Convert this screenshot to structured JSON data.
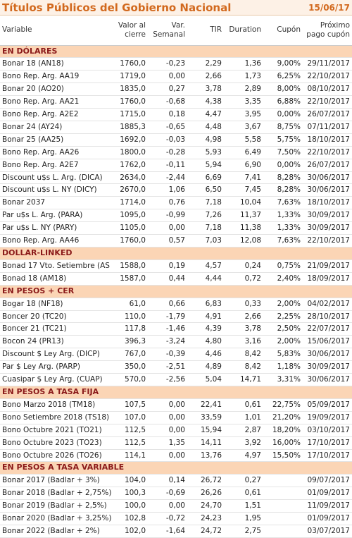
{
  "header": {
    "title": "Títulos Públicos del Gobierno Nacional",
    "date": "15/06/17"
  },
  "columns": [
    [
      "Variable"
    ],
    [
      "Valor al",
      "cierre"
    ],
    [
      "Var.",
      "Semanal"
    ],
    [
      "TIR"
    ],
    [
      "Duration"
    ],
    [
      "Cupón"
    ],
    [
      "Próximo",
      "pago cupón"
    ]
  ],
  "sections": [
    {
      "title": "EN DÓLARES",
      "rows": [
        [
          "Bonar 18 (AN18)",
          "1760,0",
          "-0,23",
          "2,29",
          "1,36",
          "9,00%",
          "29/11/2017"
        ],
        [
          "Bono Rep. Arg. AA19",
          "1719,0",
          "0,00",
          "2,66",
          "1,73",
          "6,25%",
          "22/10/2017"
        ],
        [
          "Bonar 20 (AO20)",
          "1835,0",
          "0,27",
          "3,78",
          "2,89",
          "8,00%",
          "08/10/2017"
        ],
        [
          "Bono Rep. Arg. AA21",
          "1760,0",
          "-0,68",
          "4,38",
          "3,35",
          "6,88%",
          "22/10/2017"
        ],
        [
          "Bono Rep. Arg. A2E2",
          "1715,0",
          "0,18",
          "4,47",
          "3,95",
          "0,00%",
          "26/07/2017"
        ],
        [
          "Bonar 24 (AY24)",
          "1885,3",
          "-0,65",
          "4,48",
          "3,67",
          "8,75%",
          "07/11/2017"
        ],
        [
          "Bonar 25 (AA25)",
          "1692,0",
          "-0,03",
          "4,98",
          "5,58",
          "5,75%",
          "18/10/2017"
        ],
        [
          "Bono Rep. Arg. AA26",
          "1800,0",
          "-0,28",
          "5,93",
          "6,49",
          "7,50%",
          "22/10/2017"
        ],
        [
          "Bono Rep. Arg. A2E7",
          "1762,0",
          "-0,11",
          "5,94",
          "6,90",
          "0,00%",
          "26/07/2017"
        ],
        [
          "Discount u$s L. Arg. (DICA)",
          "2634,0",
          "-2,44",
          "6,69",
          "7,41",
          "8,28%",
          "30/06/2017"
        ],
        [
          "Discount u$s L. NY (DICY)",
          "2670,0",
          "1,06",
          "6,50",
          "7,45",
          "8,28%",
          "30/06/2017"
        ],
        [
          "Bonar 2037",
          "1714,0",
          "0,76",
          "7,18",
          "10,04",
          "7,63%",
          "18/10/2017"
        ],
        [
          "Par u$s L. Arg. (PARA)",
          "1095,0",
          "-0,99",
          "7,26",
          "11,37",
          "1,33%",
          "30/09/2017"
        ],
        [
          "Par u$s L. NY (PARY)",
          "1105,0",
          "0,00",
          "7,18",
          "11,38",
          "1,33%",
          "30/09/2017"
        ],
        [
          "Bono Rep. Arg. AA46",
          "1760,0",
          "0,57",
          "7,03",
          "12,08",
          "7,63%",
          "22/10/2017"
        ]
      ]
    },
    {
      "title": "DOLLAR-LINKED",
      "rows": [
        [
          "Bonad 17 Vto. Setiembre (AS",
          "1588,0",
          "0,19",
          "4,57",
          "0,24",
          "0,75%",
          "21/09/2017"
        ],
        [
          "Bonad 18 (AM18)",
          "1587,0",
          "0,44",
          "4,44",
          "0,72",
          "2,40%",
          "18/09/2017"
        ]
      ]
    },
    {
      "title": "EN PESOS + CER",
      "rows": [
        [
          "Bogar 18 (NF18)",
          "61,0",
          "0,66",
          "6,83",
          "0,33",
          "2,00%",
          "04/02/2017"
        ],
        [
          "Boncer 20 (TC20)",
          "110,0",
          "-1,79",
          "4,91",
          "2,66",
          "2,25%",
          "28/10/2017"
        ],
        [
          "Boncer 21 (TC21)",
          "117,8",
          "-1,46",
          "4,39",
          "3,78",
          "2,50%",
          "22/07/2017"
        ],
        [
          "Bocon 24 (PR13)",
          "396,3",
          "-3,24",
          "4,80",
          "3,16",
          "2,00%",
          "15/06/2017"
        ],
        [
          "Discount $ Ley Arg. (DICP)",
          "767,0",
          "-0,39",
          "4,46",
          "8,42",
          "5,83%",
          "30/06/2017"
        ],
        [
          "Par $ Ley Arg. (PARP)",
          "350,0",
          "-2,51",
          "4,89",
          "8,42",
          "1,18%",
          "30/09/2017"
        ],
        [
          "Cuasipar $ Ley Arg. (CUAP)",
          "570,0",
          "-2,56",
          "5,04",
          "14,71",
          "3,31%",
          "30/06/2017"
        ]
      ]
    },
    {
      "title": "EN PESOS A TASA FIJA",
      "rows": [
        [
          "Bono Marzo 2018 (TM18)",
          "107,5",
          "0,00",
          "22,41",
          "0,61",
          "22,75%",
          "05/09/2017"
        ],
        [
          "Bono Setiembre 2018 (TS18)",
          "107,0",
          "0,00",
          "33,59",
          "1,01",
          "21,20%",
          "19/09/2017"
        ],
        [
          "Bono Octubre 2021 (TO21)",
          "112,5",
          "0,00",
          "15,94",
          "2,87",
          "18,20%",
          "03/10/2017"
        ],
        [
          "Bono Octubre 2023 (TO23)",
          "112,5",
          "1,35",
          "14,11",
          "3,92",
          "16,00%",
          "17/10/2017"
        ],
        [
          "Bono Octubre 2026 (TO26)",
          "114,1",
          "0,00",
          "13,76",
          "4,97",
          "15,50%",
          "17/10/2017"
        ]
      ]
    },
    {
      "title": "EN PESOS A TASA VARIABLE",
      "rows": [
        [
          "Bonar 2017 (Badlar + 3%)",
          "104,0",
          "0,14",
          "26,72",
          "0,27",
          null,
          "09/07/2017"
        ],
        [
          "Bonar 2018 (Badlar + 2,75%)",
          "100,3",
          "-0,69",
          "26,26",
          "0,61",
          null,
          "01/09/2017"
        ],
        [
          "Bonar 2019 (Badlar + 2,5%)",
          "100,0",
          "0,00",
          "24,70",
          "1,51",
          null,
          "11/09/2017"
        ],
        [
          "Bonar 2020 (Badlar + 3,25%)",
          "102,8",
          "-0,72",
          "24,23",
          "1,95",
          null,
          "01/09/2017"
        ],
        [
          "Bonar 2022 (Badlar + 2%)",
          "102,0",
          "-1,64",
          "24,72",
          "2,75",
          null,
          "03/07/2017"
        ]
      ]
    }
  ]
}
